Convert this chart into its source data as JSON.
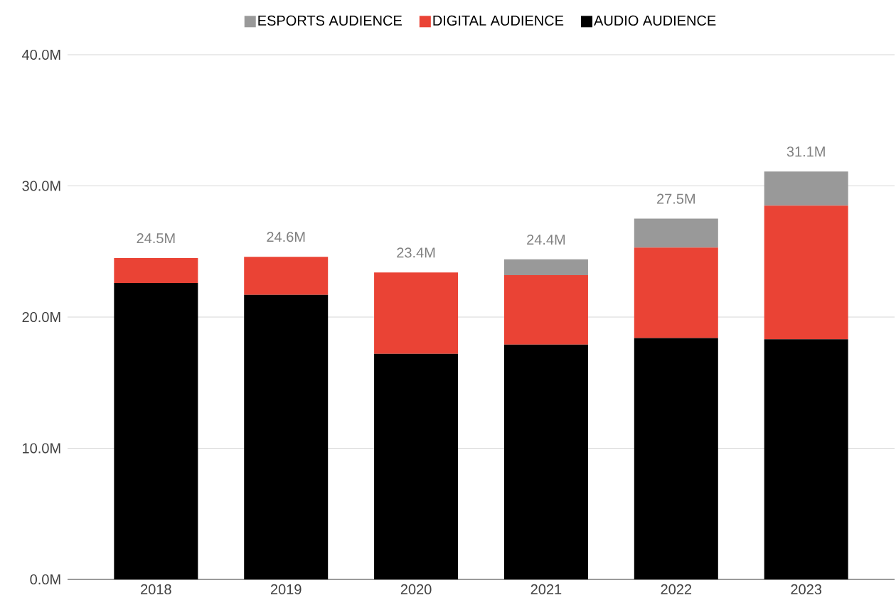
{
  "chart_data": {
    "type": "bar",
    "stacked": true,
    "categories": [
      "2018",
      "2019",
      "2020",
      "2021",
      "2022",
      "2023"
    ],
    "series": [
      {
        "name": "AUDIO AUDIENCE",
        "color": "#000000",
        "values": [
          22.6,
          21.7,
          17.2,
          17.9,
          18.4,
          18.3
        ]
      },
      {
        "name": "DIGITAL AUDIENCE",
        "color": "#ea4335",
        "values": [
          1.9,
          2.9,
          6.2,
          5.3,
          6.9,
          10.2
        ]
      },
      {
        "name": "ESPORTS AUDIENCE",
        "color": "#999999",
        "values": [
          0,
          0,
          0,
          1.2,
          2.2,
          2.6
        ]
      }
    ],
    "totals": [
      "24.5M",
      "24.6M",
      "23.4M",
      "24.4M",
      "27.5M",
      "31.1M"
    ],
    "ylim": [
      0,
      40
    ],
    "yticks": [
      {
        "value": 0,
        "label": "0.0M"
      },
      {
        "value": 10,
        "label": "10.0M"
      },
      {
        "value": 20,
        "label": "20.0M"
      },
      {
        "value": 30,
        "label": "30.0M"
      },
      {
        "value": 40,
        "label": "40.0M"
      }
    ],
    "grid": "y",
    "legend": "top"
  }
}
